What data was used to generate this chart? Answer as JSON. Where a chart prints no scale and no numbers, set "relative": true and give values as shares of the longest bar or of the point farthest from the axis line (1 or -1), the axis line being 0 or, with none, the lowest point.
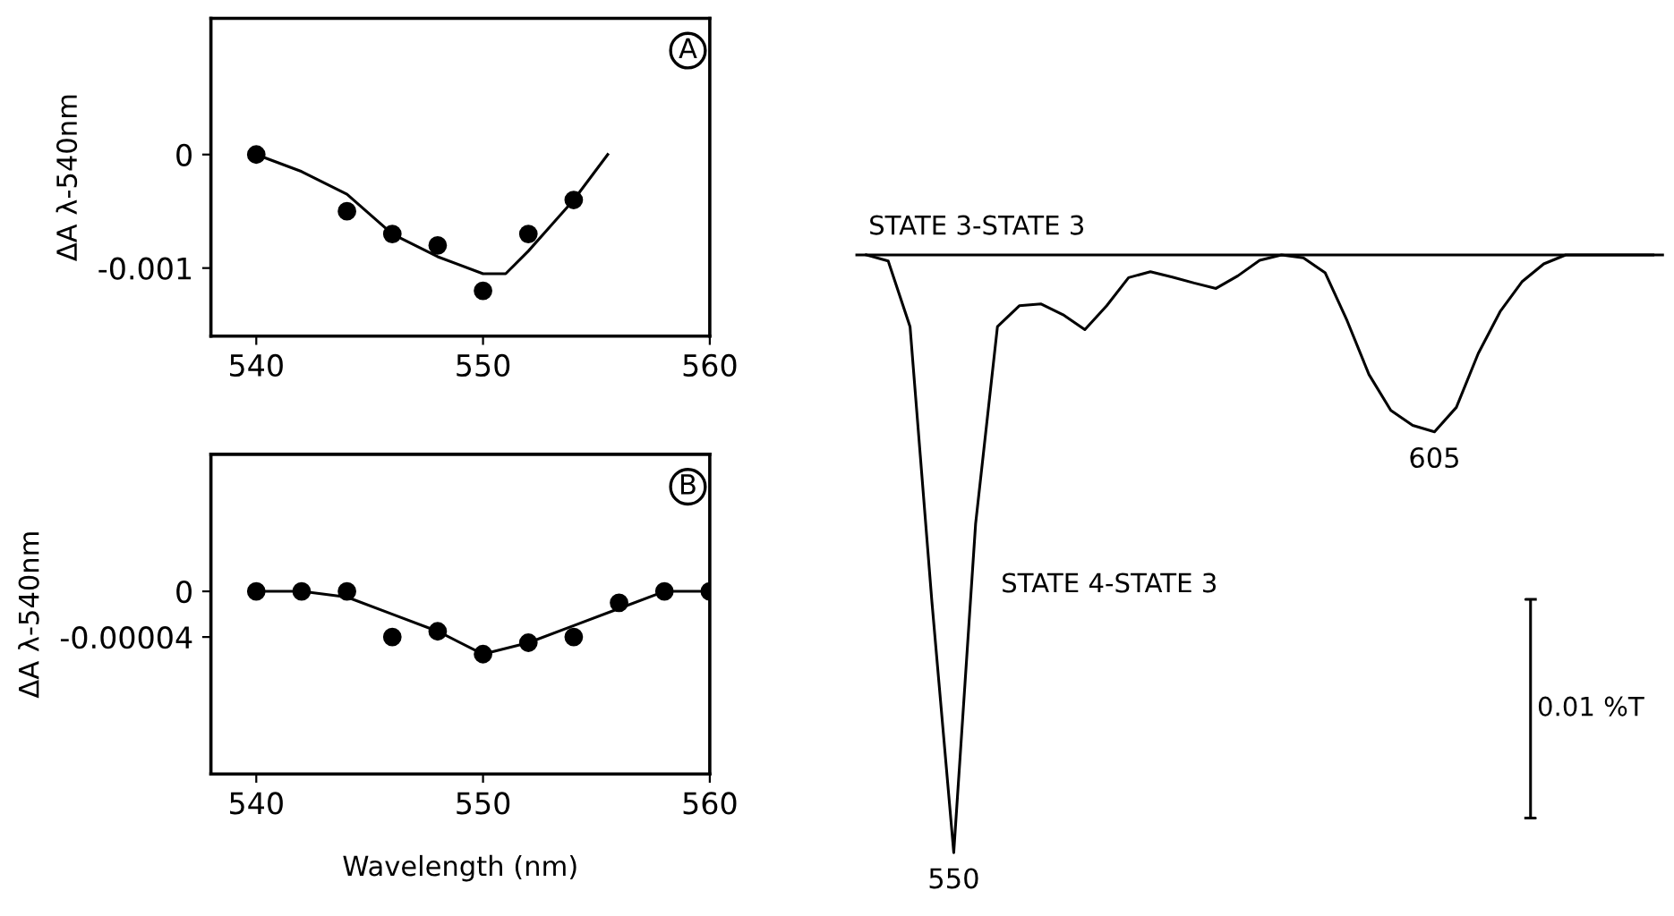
{
  "chart_data": [
    {
      "type": "scatter",
      "title": "A",
      "ylabel": "ΔA λ-540nm",
      "xlim": [
        538,
        560
      ],
      "ylim": [
        -0.0016,
        0.0012
      ],
      "xticks": [
        540,
        550,
        560
      ],
      "yticks": [
        0,
        -0.001
      ],
      "grid": false,
      "series": [
        {
          "marker": "circle",
          "color": "#000000",
          "x": [
            540,
            544,
            546,
            548,
            550,
            552,
            554
          ],
          "values": [
            0,
            -0.0005,
            -0.0007,
            -0.0008,
            -0.0012,
            -0.0007,
            -0.0004
          ]
        },
        {
          "type": "line",
          "marker": "none",
          "line_style": "solid",
          "color": "#000000",
          "x": [
            540,
            542,
            544,
            546,
            548,
            550,
            551,
            552,
            554,
            555.5
          ],
          "values": [
            0,
            -0.00015,
            -0.00035,
            -0.0007,
            -0.0009,
            -0.00105,
            -0.00105,
            -0.00085,
            -0.0004,
            0
          ]
        }
      ]
    },
    {
      "type": "scatter",
      "title": "B",
      "xlabel": "Wavelength (nm)",
      "ylabel": "ΔA λ-540nm",
      "xlim": [
        538,
        560
      ],
      "ylim": [
        -0.00016,
        0.00012
      ],
      "xticks": [
        540,
        550,
        560
      ],
      "yticks": [
        0,
        {
          "value": -4e-05,
          "label": "-0.00004"
        }
      ],
      "grid": false,
      "series": [
        {
          "marker": "circle",
          "color": "#000000",
          "x": [
            540,
            542,
            544,
            546,
            548,
            550,
            552,
            554,
            556,
            558,
            560
          ],
          "values": [
            0,
            0,
            0,
            -4e-05,
            -3.5e-05,
            -5.5e-05,
            -4.5e-05,
            -4e-05,
            -1e-05,
            0,
            0
          ]
        },
        {
          "type": "line",
          "marker": "none",
          "line_style": "solid",
          "color": "#000000",
          "x": [
            540,
            542,
            544,
            546,
            548,
            550,
            552,
            554,
            556,
            558,
            560
          ],
          "values": [
            0,
            0,
            -5e-06,
            -2e-05,
            -3.5e-05,
            -5.5e-05,
            -4.5e-05,
            -3e-05,
            -1.5e-05,
            0,
            0
          ]
        }
      ]
    },
    {
      "type": "line",
      "relative": true,
      "grid": false,
      "categories": [
        null,
        null,
        null,
        null,
        null,
        null,
        null,
        null,
        null,
        null,
        null,
        null,
        null,
        null,
        null,
        null,
        null,
        null,
        null,
        null,
        null,
        null,
        null,
        null,
        null,
        null,
        null,
        null,
        null,
        null,
        null,
        null,
        null,
        null,
        null,
        null,
        null
      ],
      "annotations": [
        {
          "text": "550",
          "y": -1
        },
        {
          "text": "605",
          "y": -0.296
        },
        "0.01 %T"
      ],
      "ref_lines": [
        {
          "axis": "y",
          "value": 0,
          "label": "STATE 3-STATE 3",
          "color": "#000000",
          "line_style": "solid"
        }
      ],
      "series": [
        {
          "name": "STATE 4-STATE 3",
          "marker": "none",
          "line_style": "solid",
          "color": "#000000",
          "values": [
            0,
            -0.01,
            -0.12,
            -0.58,
            -1,
            -0.45,
            -0.12,
            -0.085,
            -0.082,
            -0.1,
            -0.125,
            -0.085,
            -0.038,
            -0.028,
            -0.037,
            -0.047,
            -0.056,
            -0.035,
            -0.009,
            0,
            -0.005,
            -0.03,
            -0.11,
            -0.2,
            -0.26,
            -0.285,
            -0.296,
            -0.255,
            -0.165,
            -0.095,
            -0.045,
            -0.015,
            0,
            0,
            0,
            0,
            0
          ]
        }
      ]
    }
  ]
}
